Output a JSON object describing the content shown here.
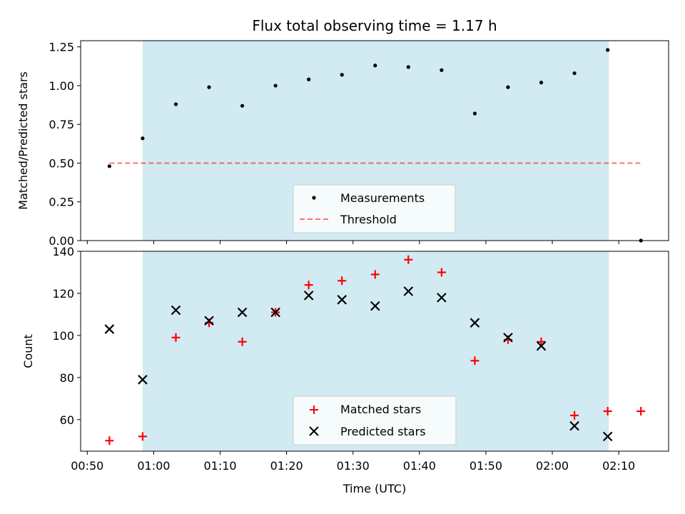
{
  "title": "Flux total observing time = 1.17 h",
  "colors": {
    "shade": "#add8e6",
    "threshold": "#ff0000",
    "matched": "#ff0000",
    "predicted": "#000000",
    "measurement": "#000000"
  },
  "chart_data": [
    {
      "type": "scatter",
      "ylabel": "Matched/Predicted stars",
      "ylim": [
        0,
        1.29
      ],
      "yticks": [
        "0.00",
        "0.25",
        "0.50",
        "0.75",
        "1.00",
        "1.25"
      ],
      "shaded_x_range": [
        "00:58:20",
        "02:08:30"
      ],
      "series": [
        {
          "name": "Measurements",
          "marker": "dot",
          "x": [
            "00:53:20",
            "00:58:20",
            "01:03:20",
            "01:08:20",
            "01:13:20",
            "01:18:20",
            "01:23:20",
            "01:28:20",
            "01:33:20",
            "01:38:20",
            "01:43:20",
            "01:48:20",
            "01:53:20",
            "01:58:20",
            "02:03:20",
            "02:08:20",
            "02:13:20"
          ],
          "values": [
            0.48,
            0.66,
            0.88,
            0.99,
            0.87,
            1.0,
            1.04,
            1.07,
            1.13,
            1.12,
            1.1,
            0.82,
            0.99,
            1.02,
            1.08,
            1.23,
            0.0
          ]
        },
        {
          "name": "Threshold",
          "marker": "dashed-line",
          "x": [
            "00:53:20",
            "02:13:20"
          ],
          "values": [
            0.5,
            0.5
          ]
        }
      ],
      "legend": "lower-center"
    },
    {
      "type": "scatter",
      "xlabel": "Time (UTC)",
      "ylabel": "Count",
      "ylim": [
        45,
        140
      ],
      "yticks": [
        "60",
        "80",
        "100",
        "120",
        "140"
      ],
      "xticks": [
        "00:50",
        "01:00",
        "01:10",
        "01:20",
        "01:30",
        "01:40",
        "01:50",
        "02:00",
        "02:10"
      ],
      "shaded_x_range": [
        "00:58:20",
        "02:08:30"
      ],
      "series": [
        {
          "name": "Matched stars",
          "marker": "plus",
          "x": [
            "00:53:20",
            "00:58:20",
            "01:03:20",
            "01:08:20",
            "01:13:20",
            "01:18:20",
            "01:23:20",
            "01:28:20",
            "01:33:20",
            "01:38:20",
            "01:43:20",
            "01:48:20",
            "01:53:20",
            "01:58:20",
            "02:03:20",
            "02:08:20",
            "02:13:20"
          ],
          "values": [
            50,
            52,
            99,
            106,
            97,
            111,
            124,
            126,
            129,
            136,
            130,
            88,
            98,
            97,
            62,
            64,
            64
          ]
        },
        {
          "name": "Predicted stars",
          "marker": "x",
          "x": [
            "00:53:20",
            "00:58:20",
            "01:03:20",
            "01:08:20",
            "01:13:20",
            "01:18:20",
            "01:23:20",
            "01:28:20",
            "01:33:20",
            "01:38:20",
            "01:43:20",
            "01:48:20",
            "01:53:20",
            "01:58:20",
            "02:03:20",
            "02:08:20"
          ],
          "values": [
            103,
            79,
            112,
            107,
            111,
            111,
            119,
            117,
            114,
            121,
            118,
            106,
            99,
            95,
            57,
            52
          ]
        }
      ],
      "legend": "lower-center"
    }
  ]
}
